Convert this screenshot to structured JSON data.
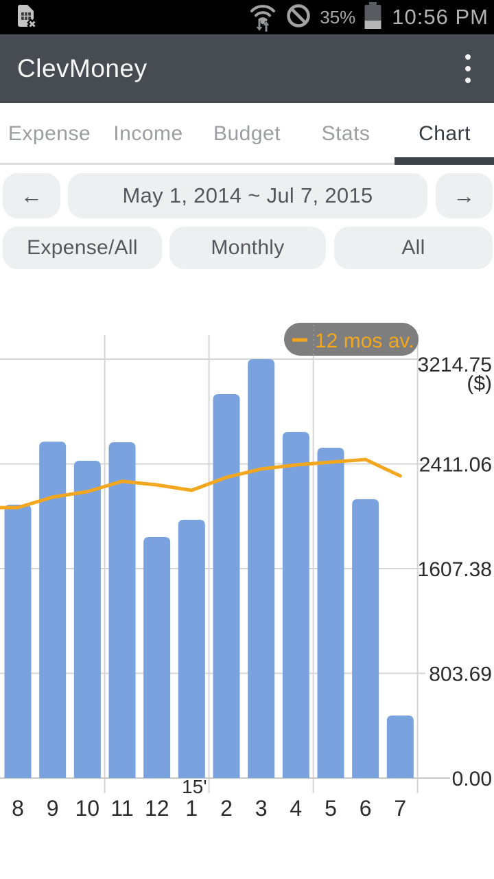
{
  "status_bar": {
    "time": "10:56 PM",
    "battery_percent": "35%",
    "left_icons": [
      "sim-missing-icon"
    ],
    "right_icons": [
      "wifi-updown-icon",
      "blocked-icon",
      "battery-icon"
    ]
  },
  "app_bar": {
    "title": "ClevMoney",
    "menu_icon": "more-vert-icon"
  },
  "tabs": {
    "items": [
      {
        "label": "Expense",
        "active": false
      },
      {
        "label": "Income",
        "active": false
      },
      {
        "label": "Budget",
        "active": false
      },
      {
        "label": "Stats",
        "active": false
      },
      {
        "label": "Chart",
        "active": true
      }
    ]
  },
  "toolbar": {
    "prev_label": "←",
    "next_label": "→",
    "date_range": "May 1, 2014 ~ Jul 7, 2015",
    "filters": [
      {
        "label": "Expense/All"
      },
      {
        "label": "Monthly"
      },
      {
        "label": "All"
      }
    ]
  },
  "colors": {
    "app_bar_bg": "#474c52",
    "tab_indicator": "#3f444a",
    "button_bg": "#edeff1",
    "bar_blue": "#79a2de",
    "line_orange": "#f2a71f",
    "legend_pill": "#7e7e7e"
  },
  "chart_data": {
    "type": "bar",
    "title": "",
    "categories": [
      "8",
      "9",
      "10",
      "11",
      "12",
      "1",
      "2",
      "3",
      "4",
      "5",
      "6",
      "7"
    ],
    "year_marker": {
      "label": "15'",
      "category_index": 5
    },
    "series": [
      {
        "name": "Expense",
        "type": "bar",
        "color": "#79a2de",
        "values": [
          2098,
          2582,
          2435,
          2577,
          1850,
          1982,
          2946,
          3214.75,
          2656,
          2535,
          2140,
          480
        ]
      },
      {
        "name": "12 mos av.",
        "type": "line",
        "color": "#f2a71f",
        "values": [
          2076,
          2156,
          2198,
          2277,
          2250,
          2208,
          2308,
          2372,
          2403,
          2424,
          2445,
          2319
        ]
      }
    ],
    "xlabel": "",
    "ylabel": "($)",
    "ylim": [
      0,
      3214.75
    ],
    "y_ticks": [
      3214.75,
      2411.06,
      1607.38,
      803.69,
      0
    ],
    "y_tick_labels": [
      "3214.75",
      "2411.06",
      "1607.38",
      "803.69",
      "0.00"
    ],
    "y_axis_side": "right",
    "grid": true,
    "legend": {
      "label": "12 mos av.",
      "position": "top-right"
    }
  }
}
